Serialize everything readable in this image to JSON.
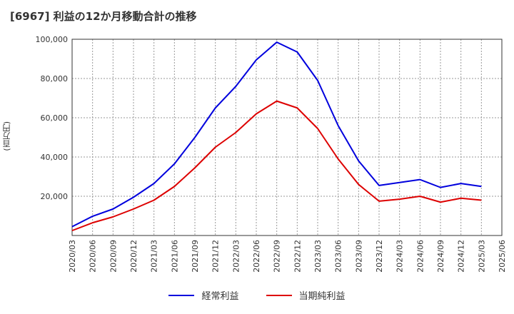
{
  "title": "[6967]  利益の12か月移動合計の推移",
  "y_unit_label": "(百万円)",
  "colors": {
    "series1": "#0000dd",
    "series2": "#dd0000",
    "grid": "#999999",
    "axis": "#333333"
  },
  "chart_data": {
    "type": "line",
    "title": "[6967]  利益の12か月移動合計の推移",
    "ylabel": "(百万円)",
    "xlabel": "",
    "ylim": [
      0,
      100000
    ],
    "yticks": [
      20000,
      40000,
      60000,
      80000,
      100000
    ],
    "ytick_labels": [
      "20,000",
      "40,000",
      "60,000",
      "80,000",
      "100,000"
    ],
    "grid": true,
    "legend": "bottom",
    "x": [
      "2020/03",
      "2020/06",
      "2020/09",
      "2020/12",
      "2021/03",
      "2021/06",
      "2021/09",
      "2021/12",
      "2022/03",
      "2022/06",
      "2022/09",
      "2022/12",
      "2023/03",
      "2023/06",
      "2023/09",
      "2023/12",
      "2024/03",
      "2024/06",
      "2024/09",
      "2024/12",
      "2025/03",
      "2025/06"
    ],
    "series": [
      {
        "name": "経常利益",
        "color": "#0000dd",
        "values": [
          4500,
          9800,
          13500,
          19500,
          26500,
          36500,
          50000,
          65000,
          76000,
          89500,
          98500,
          93500,
          79000,
          56000,
          38000,
          25500,
          27000,
          28500,
          24500,
          26500,
          25000,
          null
        ]
      },
      {
        "name": "当期純利益",
        "color": "#dd0000",
        "values": [
          2500,
          6500,
          9500,
          13500,
          18000,
          25000,
          34500,
          45000,
          52500,
          62000,
          68500,
          65000,
          54500,
          39000,
          26000,
          17500,
          18500,
          20000,
          17000,
          19000,
          18000,
          null
        ]
      }
    ]
  }
}
